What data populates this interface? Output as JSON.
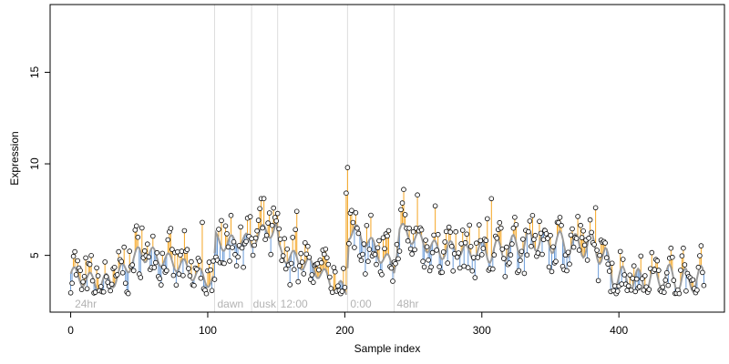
{
  "chart_data": {
    "type": "scatter",
    "title": "",
    "xlabel": "Sample index",
    "ylabel": "Expression",
    "xlim": [
      -15,
      477
    ],
    "ylim": [
      1.9,
      18.7
    ],
    "xticks": [
      0,
      100,
      200,
      300,
      400
    ],
    "yticks": [
      5,
      10,
      15
    ],
    "grid": false,
    "legend": "none",
    "fit_color": "#9a9a9a",
    "above_color": "#f5a623",
    "below_color": "#6a9bd8",
    "vline_color": "#dddddd",
    "annotations": [
      {
        "text": "24hr",
        "x": 3
      },
      {
        "text": "dawn",
        "x": 107
      },
      {
        "text": "dusk",
        "x": 133
      },
      {
        "text": "12:00",
        "x": 153
      },
      {
        "text": "0:00",
        "x": 204
      },
      {
        "text": "48hr",
        "x": 238
      }
    ],
    "vlines": [
      105,
      132,
      151,
      202,
      236
    ],
    "y_anchor": [
      [
        0,
        4.0
      ],
      [
        10,
        3.7
      ],
      [
        20,
        3.5
      ],
      [
        30,
        3.6
      ],
      [
        40,
        4.3
      ],
      [
        50,
        5.1
      ],
      [
        60,
        5.0
      ],
      [
        70,
        4.7
      ],
      [
        80,
        4.5
      ],
      [
        90,
        4.0
      ],
      [
        100,
        3.7
      ],
      [
        104,
        3.6
      ],
      [
        106,
        5.8
      ],
      [
        115,
        5.6
      ],
      [
        125,
        5.9
      ],
      [
        132,
        5.6
      ],
      [
        134,
        6.0
      ],
      [
        142,
        6.3
      ],
      [
        150,
        6.5
      ],
      [
        152,
        5.2
      ],
      [
        160,
        4.9
      ],
      [
        170,
        4.6
      ],
      [
        180,
        4.2
      ],
      [
        190,
        3.5
      ],
      [
        195,
        3.2
      ],
      [
        201,
        3.1
      ],
      [
        203,
        6.3
      ],
      [
        210,
        6.2
      ],
      [
        220,
        5.5
      ],
      [
        230,
        4.7
      ],
      [
        236,
        4.4
      ],
      [
        240,
        6.4
      ],
      [
        250,
        6.0
      ],
      [
        260,
        5.6
      ],
      [
        270,
        5.2
      ],
      [
        280,
        5.4
      ],
      [
        290,
        5.1
      ],
      [
        300,
        5.3
      ],
      [
        310,
        5.2
      ],
      [
        320,
        5.4
      ],
      [
        330,
        5.6
      ],
      [
        340,
        5.9
      ],
      [
        350,
        5.8
      ],
      [
        360,
        5.6
      ],
      [
        370,
        5.5
      ],
      [
        380,
        5.6
      ],
      [
        390,
        4.9
      ],
      [
        395,
        3.9
      ],
      [
        405,
        3.7
      ],
      [
        415,
        3.6
      ],
      [
        425,
        3.7
      ],
      [
        435,
        3.9
      ],
      [
        445,
        3.6
      ],
      [
        455,
        3.7
      ],
      [
        462,
        3.8
      ]
    ],
    "outliers": [
      [
        3,
        5.2
      ],
      [
        201,
        8.4
      ],
      [
        202,
        9.8
      ],
      [
        243,
        8.6
      ],
      [
        253,
        8.3
      ],
      [
        266,
        7.7
      ],
      [
        307,
        8.1
      ],
      [
        139,
        8.1
      ],
      [
        165,
        7.4
      ],
      [
        383,
        7.6
      ],
      [
        304,
        7.0
      ],
      [
        96,
        6.8
      ],
      [
        52,
        6.5
      ],
      [
        110,
        6.9
      ]
    ],
    "n_points": 463,
    "seed": 7
  }
}
